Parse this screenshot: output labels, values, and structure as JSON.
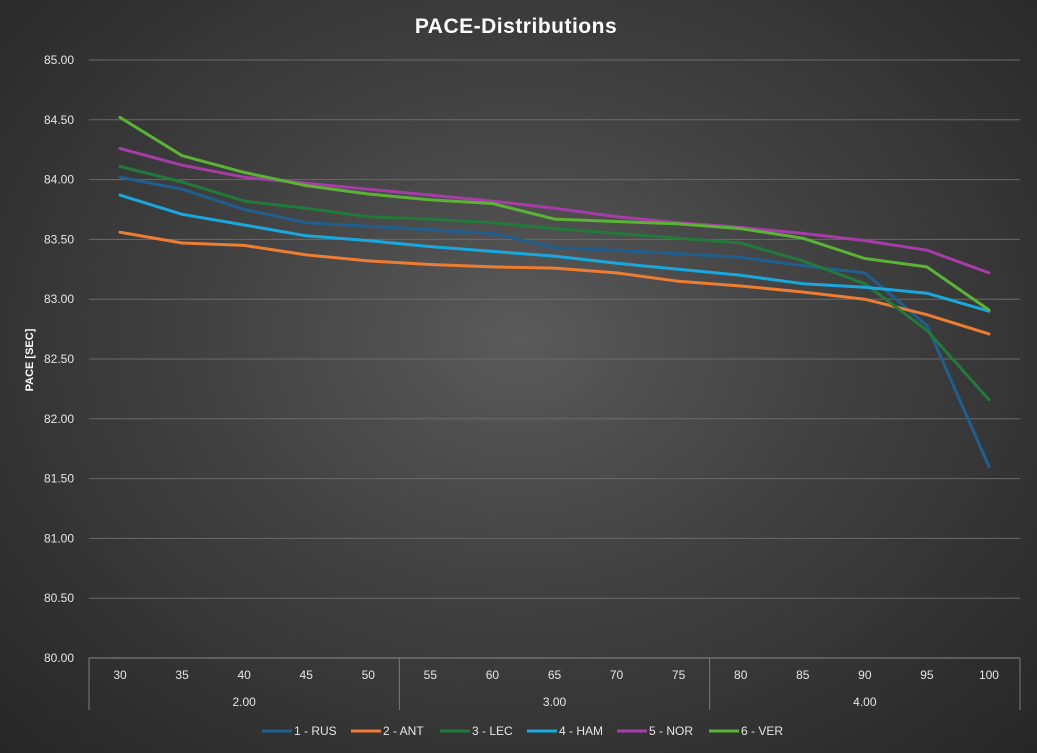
{
  "chart_data": {
    "type": "line",
    "title": "PACE-Distributions",
    "ylabel": "PACE [SEC]",
    "xlabel": "",
    "ylim": [
      80.0,
      85.0
    ],
    "ytick_step": 0.5,
    "grid": true,
    "legend_position": "bottom",
    "categories": [
      "30",
      "35",
      "40",
      "45",
      "50",
      "55",
      "60",
      "65",
      "70",
      "75",
      "80",
      "85",
      "90",
      "95",
      "100"
    ],
    "groups": [
      {
        "label": "2.00",
        "span": 5
      },
      {
        "label": "3.00",
        "span": 5
      },
      {
        "label": "4.00",
        "span": 5
      }
    ],
    "series": [
      {
        "name": "1 - RUS",
        "color": "#1f5f8f",
        "values": [
          84.02,
          83.92,
          83.75,
          83.64,
          83.61,
          83.58,
          83.55,
          83.43,
          83.41,
          83.38,
          83.35,
          83.28,
          83.22,
          82.78,
          81.6
        ]
      },
      {
        "name": "2 - ANT",
        "color": "#ed7d31",
        "values": [
          83.56,
          83.47,
          83.45,
          83.37,
          83.32,
          83.29,
          83.27,
          83.26,
          83.22,
          83.15,
          83.11,
          83.06,
          83.0,
          82.87,
          82.71
        ]
      },
      {
        "name": "3 - LEC",
        "color": "#217a3a",
        "values": [
          84.11,
          83.98,
          83.82,
          83.76,
          83.69,
          83.67,
          83.64,
          83.59,
          83.55,
          83.51,
          83.47,
          83.32,
          83.13,
          82.74,
          82.16
        ]
      },
      {
        "name": "4 - HAM",
        "color": "#1aa7dd",
        "values": [
          83.87,
          83.71,
          83.62,
          83.53,
          83.49,
          83.44,
          83.4,
          83.36,
          83.3,
          83.25,
          83.2,
          83.13,
          83.1,
          83.05,
          82.9
        ]
      },
      {
        "name": "5 - NOR",
        "color": "#a63ca8",
        "values": [
          84.26,
          84.12,
          84.02,
          83.97,
          83.92,
          83.87,
          83.82,
          83.76,
          83.69,
          83.64,
          83.6,
          83.55,
          83.49,
          83.41,
          83.22
        ]
      },
      {
        "name": "6 - VER",
        "color": "#5ab334",
        "values": [
          84.52,
          84.2,
          84.06,
          83.95,
          83.88,
          83.83,
          83.8,
          83.67,
          83.65,
          83.63,
          83.59,
          83.51,
          83.34,
          83.27,
          82.91
        ]
      }
    ]
  }
}
